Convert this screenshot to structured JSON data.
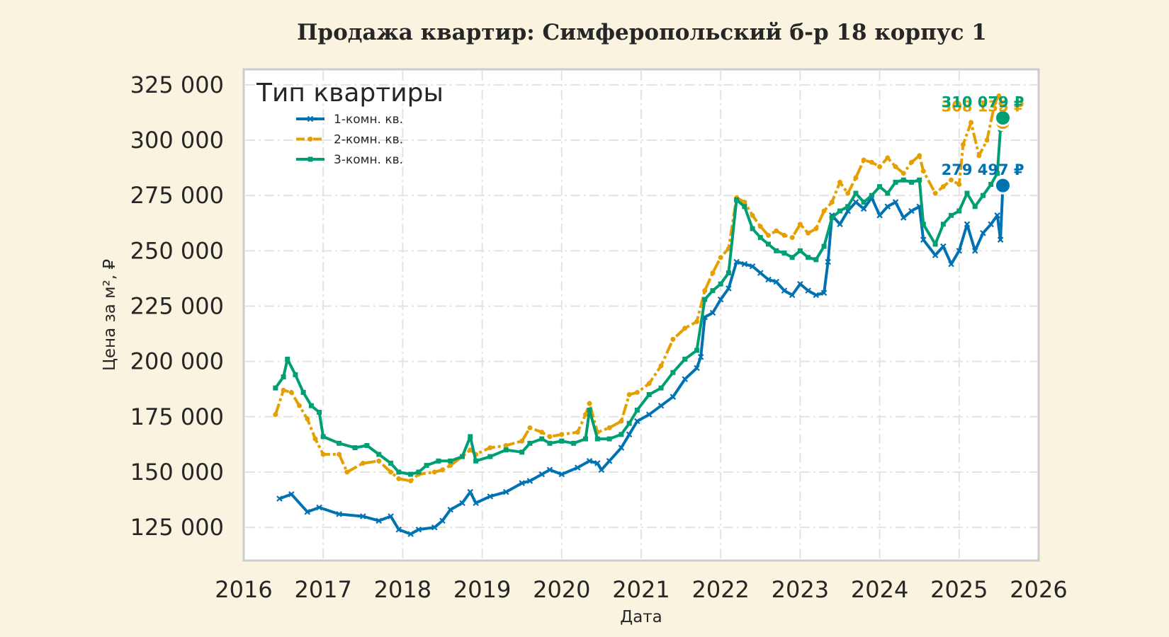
{
  "chart_data": {
    "type": "line",
    "title": "Продажа квартир: Симферопольский б-р 18 корпус 1",
    "xlabel": "Дата",
    "ylabel": "Цена за м², ₽",
    "xlim": [
      2016,
      2026
    ],
    "ylim": [
      110000,
      332000
    ],
    "x_ticks": [
      "2016",
      "2017",
      "2018",
      "2019",
      "2020",
      "2021",
      "2022",
      "2023",
      "2024",
      "2025",
      "2026"
    ],
    "y_ticks": [
      {
        "value": 125000,
        "label": "125 000"
      },
      {
        "value": 150000,
        "label": "150 000"
      },
      {
        "value": 175000,
        "label": "175 000"
      },
      {
        "value": 200000,
        "label": "200 000"
      },
      {
        "value": 225000,
        "label": "225 000"
      },
      {
        "value": 250000,
        "label": "250 000"
      },
      {
        "value": 275000,
        "label": "275 000"
      },
      {
        "value": 300000,
        "label": "300 000"
      },
      {
        "value": 325000,
        "label": "325 000"
      }
    ],
    "grid": true,
    "legend": {
      "title": "Тип квартиры",
      "placement": "top-left"
    },
    "series": [
      {
        "name": "1-комн. кв.",
        "color": "#0072b2",
        "marker": "x",
        "end_label": "279 497 ₽",
        "end_point": {
          "x": 2025.55,
          "y": 279497
        },
        "points": [
          [
            2016.45,
            138000
          ],
          [
            2016.6,
            140000
          ],
          [
            2016.8,
            132000
          ],
          [
            2016.95,
            134000
          ],
          [
            2017.2,
            131000
          ],
          [
            2017.5,
            130000
          ],
          [
            2017.7,
            128000
          ],
          [
            2017.85,
            130000
          ],
          [
            2017.95,
            124000
          ],
          [
            2018.1,
            122000
          ],
          [
            2018.2,
            124000
          ],
          [
            2018.4,
            125000
          ],
          [
            2018.5,
            128000
          ],
          [
            2018.6,
            133000
          ],
          [
            2018.75,
            136000
          ],
          [
            2018.85,
            141000
          ],
          [
            2018.92,
            136000
          ],
          [
            2019.1,
            139000
          ],
          [
            2019.3,
            141000
          ],
          [
            2019.5,
            145000
          ],
          [
            2019.6,
            146000
          ],
          [
            2019.75,
            149000
          ],
          [
            2019.85,
            151000
          ],
          [
            2020.0,
            149000
          ],
          [
            2020.2,
            152000
          ],
          [
            2020.35,
            155000
          ],
          [
            2020.45,
            154000
          ],
          [
            2020.5,
            151000
          ],
          [
            2020.6,
            155000
          ],
          [
            2020.75,
            161000
          ],
          [
            2020.85,
            167000
          ],
          [
            2020.95,
            173000
          ],
          [
            2021.1,
            176000
          ],
          [
            2021.25,
            180000
          ],
          [
            2021.4,
            184000
          ],
          [
            2021.55,
            192000
          ],
          [
            2021.7,
            197000
          ],
          [
            2021.75,
            202000
          ],
          [
            2021.8,
            220000
          ],
          [
            2021.9,
            222000
          ],
          [
            2022.0,
            228000
          ],
          [
            2022.1,
            233000
          ],
          [
            2022.2,
            245000
          ],
          [
            2022.3,
            244000
          ],
          [
            2022.4,
            243000
          ],
          [
            2022.5,
            240000
          ],
          [
            2022.6,
            237000
          ],
          [
            2022.7,
            236000
          ],
          [
            2022.8,
            232000
          ],
          [
            2022.9,
            230000
          ],
          [
            2023.0,
            235000
          ],
          [
            2023.1,
            232000
          ],
          [
            2023.2,
            230000
          ],
          [
            2023.3,
            231000
          ],
          [
            2023.35,
            245000
          ],
          [
            2023.4,
            266000
          ],
          [
            2023.5,
            262000
          ],
          [
            2023.6,
            268000
          ],
          [
            2023.7,
            272000
          ],
          [
            2023.8,
            269000
          ],
          [
            2023.9,
            274000
          ],
          [
            2024.0,
            266000
          ],
          [
            2024.1,
            270000
          ],
          [
            2024.2,
            272000
          ],
          [
            2024.3,
            265000
          ],
          [
            2024.4,
            268000
          ],
          [
            2024.5,
            270000
          ],
          [
            2024.55,
            255000
          ],
          [
            2024.7,
            248000
          ],
          [
            2024.8,
            252000
          ],
          [
            2024.9,
            244000
          ],
          [
            2025.0,
            250000
          ],
          [
            2025.1,
            262000
          ],
          [
            2025.2,
            250000
          ],
          [
            2025.3,
            258000
          ],
          [
            2025.4,
            262000
          ],
          [
            2025.48,
            266000
          ],
          [
            2025.52,
            255000
          ],
          [
            2025.55,
            279497
          ]
        ]
      },
      {
        "name": "2-комн. кв.",
        "color": "#e69f00",
        "marker": "*",
        "end_label": "308 135 ₽",
        "end_point": {
          "x": 2025.55,
          "y": 308135
        },
        "points": [
          [
            2016.4,
            176000
          ],
          [
            2016.5,
            187000
          ],
          [
            2016.6,
            186000
          ],
          [
            2016.7,
            180000
          ],
          [
            2016.8,
            174000
          ],
          [
            2016.9,
            165000
          ],
          [
            2017.0,
            158000
          ],
          [
            2017.2,
            158000
          ],
          [
            2017.3,
            150000
          ],
          [
            2017.5,
            154000
          ],
          [
            2017.7,
            155000
          ],
          [
            2017.85,
            150000
          ],
          [
            2017.95,
            147000
          ],
          [
            2018.1,
            146000
          ],
          [
            2018.2,
            149000
          ],
          [
            2018.4,
            150000
          ],
          [
            2018.5,
            151000
          ],
          [
            2018.6,
            153000
          ],
          [
            2018.75,
            157000
          ],
          [
            2018.85,
            160000
          ],
          [
            2018.92,
            158000
          ],
          [
            2019.1,
            161000
          ],
          [
            2019.3,
            162000
          ],
          [
            2019.5,
            164000
          ],
          [
            2019.6,
            170000
          ],
          [
            2019.75,
            168000
          ],
          [
            2019.85,
            166000
          ],
          [
            2020.0,
            167000
          ],
          [
            2020.2,
            168000
          ],
          [
            2020.3,
            176000
          ],
          [
            2020.35,
            181000
          ],
          [
            2020.45,
            168000
          ],
          [
            2020.6,
            170000
          ],
          [
            2020.75,
            173000
          ],
          [
            2020.85,
            185000
          ],
          [
            2020.95,
            186000
          ],
          [
            2021.1,
            190000
          ],
          [
            2021.25,
            198000
          ],
          [
            2021.4,
            210000
          ],
          [
            2021.55,
            215000
          ],
          [
            2021.7,
            218000
          ],
          [
            2021.8,
            232000
          ],
          [
            2021.9,
            240000
          ],
          [
            2022.0,
            247000
          ],
          [
            2022.1,
            251000
          ],
          [
            2022.2,
            274000
          ],
          [
            2022.3,
            272000
          ],
          [
            2022.4,
            266000
          ],
          [
            2022.5,
            261000
          ],
          [
            2022.6,
            257000
          ],
          [
            2022.7,
            259000
          ],
          [
            2022.8,
            257000
          ],
          [
            2022.9,
            256000
          ],
          [
            2023.0,
            262000
          ],
          [
            2023.1,
            258000
          ],
          [
            2023.2,
            260000
          ],
          [
            2023.3,
            268000
          ],
          [
            2023.4,
            272000
          ],
          [
            2023.5,
            281000
          ],
          [
            2023.6,
            276000
          ],
          [
            2023.7,
            283000
          ],
          [
            2023.8,
            291000
          ],
          [
            2023.9,
            290000
          ],
          [
            2024.0,
            288000
          ],
          [
            2024.1,
            292000
          ],
          [
            2024.2,
            288000
          ],
          [
            2024.3,
            285000
          ],
          [
            2024.4,
            290000
          ],
          [
            2024.5,
            293000
          ],
          [
            2024.55,
            286000
          ],
          [
            2024.7,
            276000
          ],
          [
            2024.8,
            279000
          ],
          [
            2024.9,
            282000
          ],
          [
            2025.0,
            280000
          ],
          [
            2025.05,
            298000
          ],
          [
            2025.15,
            308000
          ],
          [
            2025.25,
            293000
          ],
          [
            2025.35,
            300000
          ],
          [
            2025.45,
            317000
          ],
          [
            2025.5,
            320000
          ],
          [
            2025.55,
            308135
          ]
        ]
      },
      {
        "name": "3-комн. кв.",
        "color": "#009e73",
        "marker": "s",
        "end_label": "310 079 ₽",
        "end_point": {
          "x": 2025.55,
          "y": 310079
        },
        "points": [
          [
            2016.4,
            188000
          ],
          [
            2016.5,
            193000
          ],
          [
            2016.55,
            201000
          ],
          [
            2016.65,
            194000
          ],
          [
            2016.75,
            186000
          ],
          [
            2016.85,
            180000
          ],
          [
            2016.95,
            177000
          ],
          [
            2017.0,
            166000
          ],
          [
            2017.2,
            163000
          ],
          [
            2017.4,
            161000
          ],
          [
            2017.55,
            162000
          ],
          [
            2017.7,
            158000
          ],
          [
            2017.85,
            154000
          ],
          [
            2017.95,
            150000
          ],
          [
            2018.1,
            149000
          ],
          [
            2018.2,
            150000
          ],
          [
            2018.3,
            153000
          ],
          [
            2018.45,
            155000
          ],
          [
            2018.6,
            155000
          ],
          [
            2018.75,
            157000
          ],
          [
            2018.85,
            166000
          ],
          [
            2018.92,
            155000
          ],
          [
            2019.1,
            157000
          ],
          [
            2019.3,
            160000
          ],
          [
            2019.5,
            159000
          ],
          [
            2019.6,
            163000
          ],
          [
            2019.75,
            165000
          ],
          [
            2019.85,
            163000
          ],
          [
            2020.0,
            164000
          ],
          [
            2020.15,
            163000
          ],
          [
            2020.3,
            165000
          ],
          [
            2020.35,
            178000
          ],
          [
            2020.45,
            165000
          ],
          [
            2020.6,
            165000
          ],
          [
            2020.75,
            167000
          ],
          [
            2020.85,
            172000
          ],
          [
            2020.95,
            178000
          ],
          [
            2021.1,
            185000
          ],
          [
            2021.25,
            188000
          ],
          [
            2021.4,
            195000
          ],
          [
            2021.55,
            201000
          ],
          [
            2021.7,
            205000
          ],
          [
            2021.8,
            228000
          ],
          [
            2021.9,
            232000
          ],
          [
            2022.0,
            235000
          ],
          [
            2022.1,
            240000
          ],
          [
            2022.2,
            273000
          ],
          [
            2022.3,
            270000
          ],
          [
            2022.4,
            260000
          ],
          [
            2022.5,
            256000
          ],
          [
            2022.6,
            253000
          ],
          [
            2022.7,
            250000
          ],
          [
            2022.8,
            249000
          ],
          [
            2022.9,
            247000
          ],
          [
            2023.0,
            250000
          ],
          [
            2023.1,
            247000
          ],
          [
            2023.2,
            246000
          ],
          [
            2023.3,
            252000
          ],
          [
            2023.4,
            265000
          ],
          [
            2023.5,
            268000
          ],
          [
            2023.6,
            270000
          ],
          [
            2023.7,
            276000
          ],
          [
            2023.8,
            272000
          ],
          [
            2023.9,
            275000
          ],
          [
            2024.0,
            279000
          ],
          [
            2024.1,
            276000
          ],
          [
            2024.2,
            281000
          ],
          [
            2024.3,
            282000
          ],
          [
            2024.4,
            281000
          ],
          [
            2024.5,
            282000
          ],
          [
            2024.55,
            262000
          ],
          [
            2024.7,
            253000
          ],
          [
            2024.8,
            262000
          ],
          [
            2024.9,
            266000
          ],
          [
            2025.0,
            268000
          ],
          [
            2025.1,
            276000
          ],
          [
            2025.2,
            270000
          ],
          [
            2025.3,
            275000
          ],
          [
            2025.4,
            280000
          ],
          [
            2025.48,
            285000
          ],
          [
            2025.52,
            305000
          ],
          [
            2025.55,
            310079
          ]
        ]
      }
    ]
  }
}
